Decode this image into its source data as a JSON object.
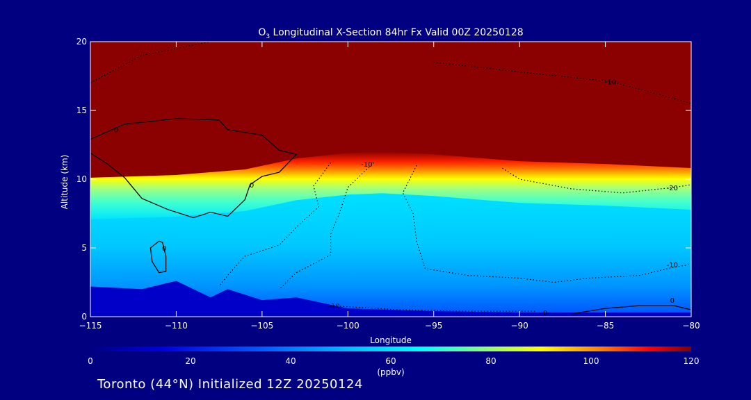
{
  "colors": {
    "background": "#000080",
    "ramp": [
      "#0000c8",
      "#0064ff",
      "#00e6ff",
      "#64ffbe",
      "#ffff00",
      "#ff8c00",
      "#ff0000",
      "#8b0000"
    ]
  },
  "chart_data": {
    "type": "heatmap",
    "title_main": "O",
    "title_sub": "3",
    "title_rest": " Longitudinal X-Section 84hr  Fx Valid 00Z 20250128",
    "xlabel": "Longitude",
    "ylabel": "Altitude (km)",
    "xlim": [
      -115,
      -80
    ],
    "ylim": [
      0,
      20
    ],
    "xticks": [
      -115,
      -110,
      -105,
      -100,
      -95,
      -90,
      -85,
      -80
    ],
    "yticks": [
      0,
      5,
      10,
      15,
      20
    ],
    "xtick_labels": [
      "−115",
      "−110",
      "−105",
      "−100",
      "−95",
      "−90",
      "−85",
      "−80"
    ],
    "ytick_labels": [
      "0",
      "5",
      "10",
      "15",
      "20"
    ],
    "colorbar": {
      "min": 0,
      "max": 120,
      "ticks": [
        0,
        20,
        40,
        60,
        80,
        100,
        120
      ],
      "tick_labels": [
        "0",
        "20",
        "40",
        "60",
        "80",
        "100",
        "120"
      ],
      "unit": "(ppbv)"
    },
    "layers": [
      {
        "value": 120,
        "color": "#8b0000",
        "top_alt": 20
      },
      {
        "value": 60,
        "color": "#00ffff",
        "tropopause_alt": [
          [
            -115,
            9.6
          ],
          [
            -110,
            9.8
          ],
          [
            -106,
            10.2
          ],
          [
            -103,
            11.0
          ],
          [
            -100,
            11.4
          ],
          [
            -98,
            11.5
          ],
          [
            -95,
            11.3
          ],
          [
            -92,
            11.0
          ],
          [
            -90,
            10.8
          ],
          [
            -85,
            10.6
          ],
          [
            -80,
            10.3
          ]
        ]
      },
      {
        "value": 10,
        "color": "#0000c8",
        "surface_alt": [
          [
            -115,
            2.2
          ],
          [
            -112,
            2.0
          ],
          [
            -110,
            2.6
          ],
          [
            -108,
            1.4
          ],
          [
            -107,
            2.0
          ],
          [
            -105,
            1.2
          ],
          [
            -103,
            1.4
          ],
          [
            -100,
            0.6
          ],
          [
            -95,
            0.4
          ],
          [
            -90,
            0.3
          ],
          [
            -85,
            0.3
          ],
          [
            -80,
            0.3
          ]
        ]
      }
    ],
    "contour_labels": [
      {
        "text": "0",
        "x": -113.5,
        "y": 13.6
      },
      {
        "text": "0",
        "x": -105.6,
        "y": 9.6
      },
      {
        "text": "0",
        "x": -110.7,
        "y": 5.0
      },
      {
        "text": "-10",
        "x": -84.7,
        "y": 17.1
      },
      {
        "text": "-10",
        "x": -98.9,
        "y": 11.1
      },
      {
        "text": "-20",
        "x": -81.1,
        "y": 9.4
      },
      {
        "text": "-10",
        "x": -81.1,
        "y": 3.8
      },
      {
        "text": "-10",
        "x": -100.8,
        "y": 0.8
      },
      {
        "text": "0",
        "x": -88.5,
        "y": 0.3
      },
      {
        "text": "0",
        "x": -81.1,
        "y": 1.2
      }
    ]
  },
  "footer": "Toronto (44°N) Initialized 12Z 20250124"
}
